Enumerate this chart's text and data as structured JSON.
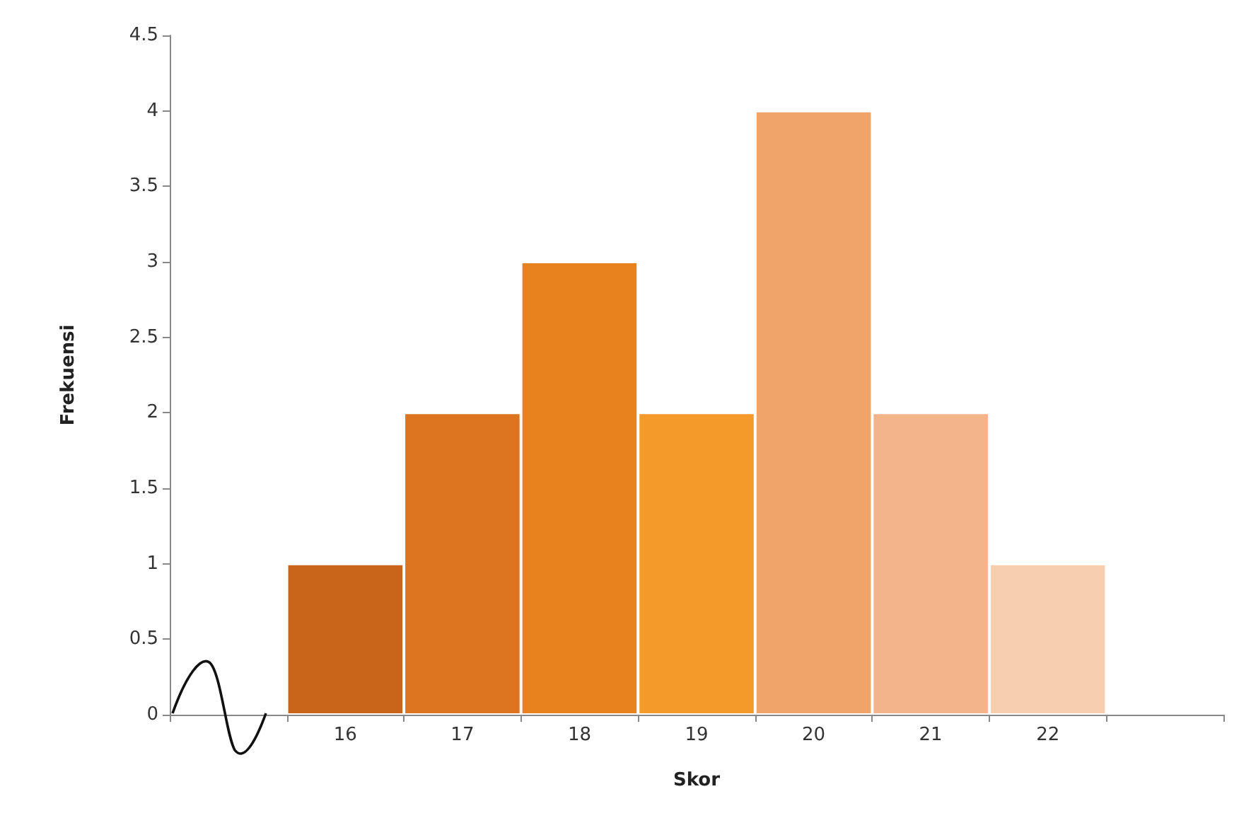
{
  "chart_data": {
    "type": "bar",
    "xlabel": "Skor",
    "ylabel": "Frekuensi",
    "categories": [
      null,
      "16",
      "17",
      "18",
      "19",
      "20",
      "21",
      "22",
      null
    ],
    "values": [
      null,
      1,
      2,
      3,
      2,
      4,
      2,
      1,
      null
    ],
    "colors": [
      "#c8651a",
      "#c8651a",
      "#dd7420",
      "#e8821f",
      "#f39a2a",
      "#f0a46a",
      "#f4b48a",
      "#f7cfae",
      "#f7cfae"
    ],
    "ylim": [
      0,
      4.5
    ],
    "yticks": [
      0,
      0.5,
      1,
      1.5,
      2,
      2.5,
      3,
      3.5,
      4,
      4.5
    ],
    "grid": false
  }
}
